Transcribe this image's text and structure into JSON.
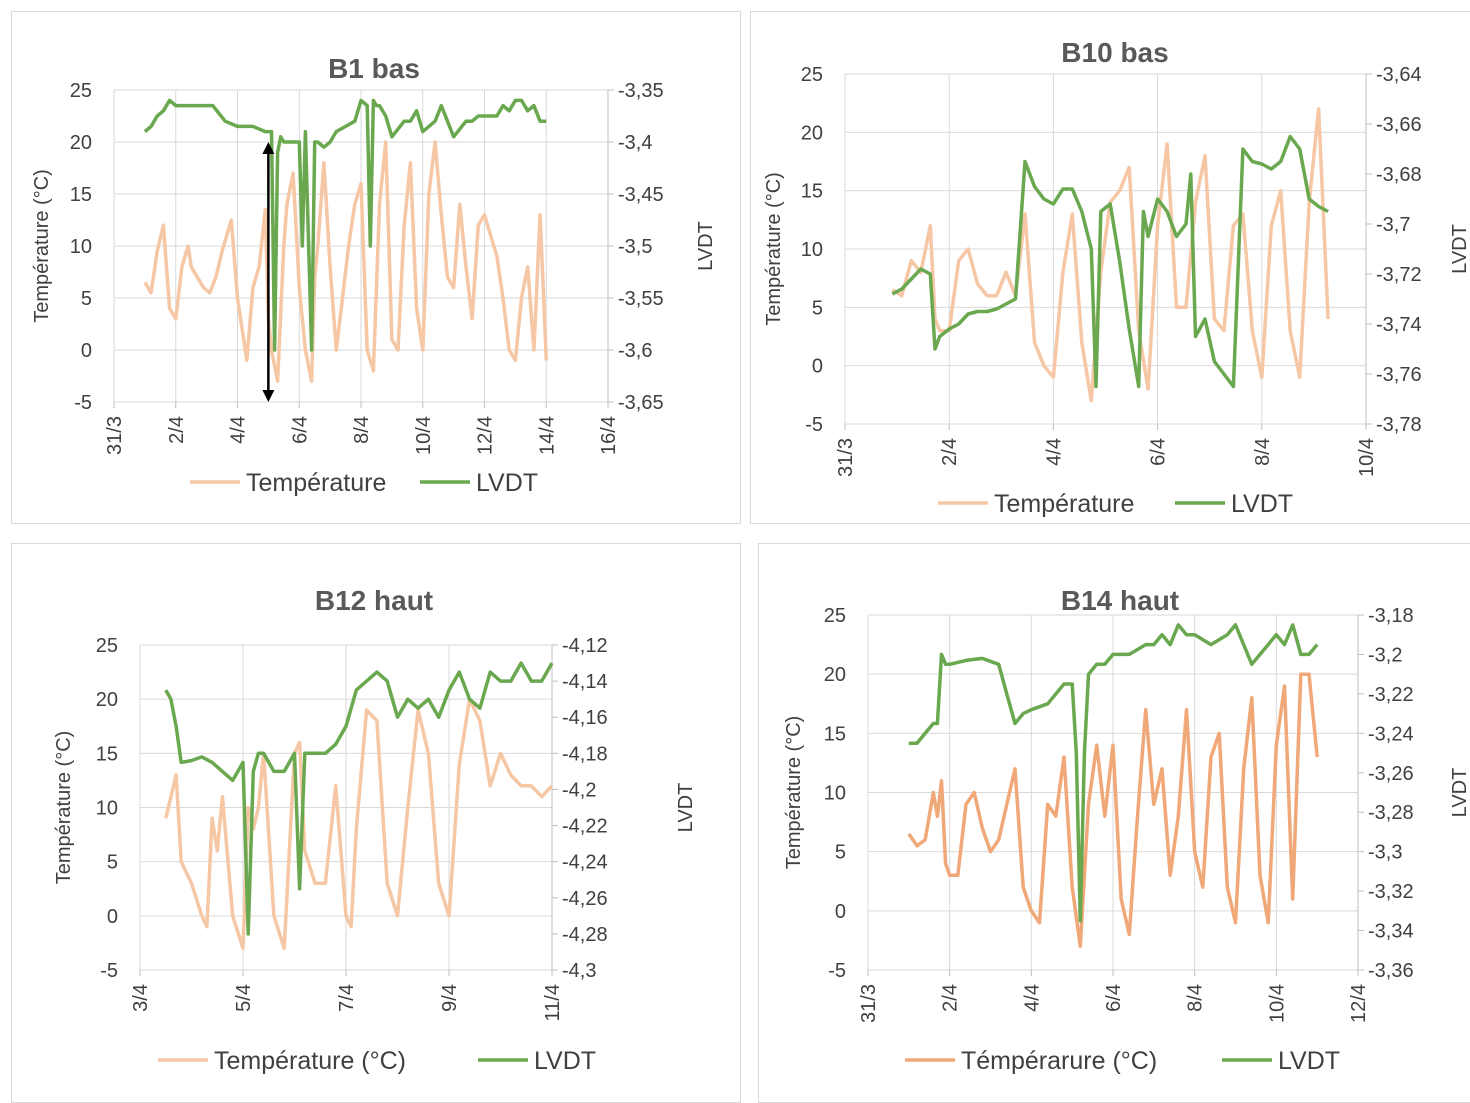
{
  "colors": {
    "temperature": "#f6c7a5",
    "temperature_dark": "#f0a878",
    "lvdt": "#6aa84f",
    "grid": "#d9d9d9",
    "text": "#404040",
    "title": "#595959"
  },
  "chart_data": [
    {
      "type": "line",
      "title": "B1 bas",
      "ylabel": "Température (°C)",
      "y2label": "LVDT",
      "xlabel": "",
      "xlim": [
        0,
        16
      ],
      "x_ticks": [
        "31/3",
        "2/4",
        "4/4",
        "6/4",
        "8/4",
        "10/4",
        "12/4",
        "14/4",
        "16/4"
      ],
      "ylim": [
        -5,
        25
      ],
      "y_ticks": [
        "-5",
        "0",
        "5",
        "10",
        "15",
        "20",
        "25"
      ],
      "y2lim": [
        -3.65,
        -3.35
      ],
      "y2_ticks": [
        "-3,65",
        "-3,6",
        "-3,55",
        "-3,5",
        "-3,45",
        "-3,4",
        "-3,35"
      ],
      "annotation": {
        "type": "double-arrow",
        "x": 5.0,
        "y2_from": -3.4,
        "y2_to": -3.65
      },
      "legend": [
        "Température",
        "LVDT"
      ],
      "legend_position": "bottom",
      "series": [
        {
          "name": "Température",
          "axis": "left",
          "color": "#f6c7a5",
          "x": [
            1.0,
            1.2,
            1.4,
            1.6,
            1.8,
            2.0,
            2.2,
            2.4,
            2.5,
            2.7,
            2.9,
            3.1,
            3.3,
            3.5,
            3.8,
            4.0,
            4.1,
            4.3,
            4.5,
            4.7,
            4.9,
            5.0,
            5.1,
            5.3,
            5.5,
            5.6,
            5.8,
            6.0,
            6.2,
            6.4,
            6.5,
            6.6,
            6.8,
            7.0,
            7.2,
            7.4,
            7.6,
            7.8,
            8.0,
            8.2,
            8.4,
            8.6,
            8.8,
            9.0,
            9.2,
            9.4,
            9.6,
            9.8,
            10.0,
            10.2,
            10.4,
            10.6,
            10.8,
            11.0,
            11.2,
            11.4,
            11.6,
            11.8,
            12.0,
            12.2,
            12.4,
            12.6,
            12.8,
            13.0,
            13.2,
            13.4,
            13.6,
            13.8,
            14.0
          ],
          "values": [
            6.5,
            5.5,
            9.5,
            12,
            4,
            3,
            8,
            10,
            8,
            7,
            6,
            5.5,
            7,
            9.5,
            12.5,
            5,
            3,
            -1,
            6,
            8,
            13.5,
            3,
            0,
            -3,
            10,
            14,
            17,
            6,
            0,
            -3,
            7,
            10,
            18,
            8,
            0,
            5,
            10,
            14,
            16,
            0,
            -2,
            14,
            20,
            1,
            0,
            12,
            18,
            4,
            0,
            15,
            20,
            13,
            7,
            6,
            14,
            8,
            3,
            12,
            13,
            11,
            9,
            5,
            0,
            -1,
            5,
            8,
            0,
            13,
            -1
          ]
        },
        {
          "name": "LVDT",
          "axis": "right",
          "color": "#6aa84f",
          "x": [
            1.0,
            1.2,
            1.4,
            1.6,
            1.8,
            2.0,
            2.4,
            2.8,
            3.0,
            3.2,
            3.6,
            4.0,
            4.5,
            4.9,
            5.1,
            5.2,
            5.3,
            5.4,
            5.5,
            5.6,
            5.8,
            6.0,
            6.1,
            6.2,
            6.4,
            6.5,
            6.6,
            6.8,
            7.0,
            7.2,
            7.5,
            7.8,
            8.0,
            8.2,
            8.3,
            8.4,
            8.5,
            8.6,
            8.8,
            9.0,
            9.4,
            9.6,
            9.8,
            10.0,
            10.4,
            10.6,
            10.8,
            11.0,
            11.4,
            11.6,
            11.8,
            12.0,
            12.4,
            12.6,
            12.8,
            13.0,
            13.2,
            13.4,
            13.6,
            13.8,
            14.0
          ],
          "values": [
            -3.39,
            -3.385,
            -3.375,
            -3.37,
            -3.36,
            -3.365,
            -3.365,
            -3.365,
            -3.365,
            -3.365,
            -3.38,
            -3.385,
            -3.385,
            -3.39,
            -3.39,
            -3.6,
            -3.41,
            -3.395,
            -3.4,
            -3.4,
            -3.4,
            -3.4,
            -3.5,
            -3.39,
            -3.6,
            -3.4,
            -3.4,
            -3.405,
            -3.4,
            -3.39,
            -3.385,
            -3.38,
            -3.36,
            -3.365,
            -3.5,
            -3.36,
            -3.365,
            -3.365,
            -3.375,
            -3.395,
            -3.38,
            -3.38,
            -3.37,
            -3.39,
            -3.38,
            -3.365,
            -3.38,
            -3.395,
            -3.38,
            -3.38,
            -3.375,
            -3.375,
            -3.375,
            -3.365,
            -3.37,
            -3.36,
            -3.36,
            -3.37,
            -3.365,
            -3.38,
            -3.38
          ]
        }
      ]
    },
    {
      "type": "line",
      "title": "B10 bas",
      "ylabel": "Température (°C)",
      "y2label": "LVDT",
      "xlabel": "",
      "xlim": [
        0,
        11
      ],
      "x_ticks": [
        "31/3",
        "2/4",
        "4/4",
        "6/4",
        "8/4",
        "10/4"
      ],
      "ylim": [
        -5,
        25
      ],
      "y_ticks": [
        "-5",
        "0",
        "5",
        "10",
        "15",
        "20",
        "25"
      ],
      "y2lim": [
        -3.78,
        -3.64
      ],
      "y2_ticks": [
        "-3,78",
        "-3,76",
        "-3,74",
        "-3,72",
        "-3,7",
        "-3,68",
        "-3,66",
        "-3,64"
      ],
      "legend": [
        "Température",
        "LVDT"
      ],
      "legend_position": "bottom",
      "series": [
        {
          "name": "Température",
          "axis": "left",
          "color": "#f6c7a5",
          "x": [
            1.0,
            1.2,
            1.4,
            1.6,
            1.8,
            1.9,
            2.0,
            2.2,
            2.4,
            2.6,
            2.8,
            3.0,
            3.2,
            3.4,
            3.6,
            3.8,
            4.0,
            4.2,
            4.4,
            4.6,
            4.8,
            5.0,
            5.2,
            5.4,
            5.6,
            5.8,
            6.0,
            6.2,
            6.4,
            6.6,
            6.8,
            7.0,
            7.2,
            7.4,
            7.6,
            7.8,
            8.0,
            8.2,
            8.4,
            8.6,
            8.8,
            9.0,
            9.2,
            9.4,
            9.6,
            9.8,
            10.0,
            10.2
          ],
          "values": [
            6.5,
            6,
            9,
            8,
            12,
            4,
            3,
            3,
            9,
            10,
            7,
            6,
            6,
            8,
            6,
            13,
            2,
            0,
            -1,
            8,
            13,
            2,
            -3,
            8,
            14,
            15,
            17,
            3,
            -2,
            12,
            19,
            5,
            5,
            14,
            18,
            4,
            3,
            12,
            13,
            3,
            -1,
            12,
            15,
            3,
            -1,
            14,
            22,
            4
          ]
        },
        {
          "name": "LVDT",
          "axis": "right",
          "color": "#6aa84f",
          "x": [
            1.0,
            1.2,
            1.4,
            1.6,
            1.8,
            1.9,
            2.0,
            2.2,
            2.4,
            2.6,
            2.8,
            3.0,
            3.2,
            3.4,
            3.6,
            3.8,
            4.0,
            4.2,
            4.4,
            4.6,
            4.8,
            5.0,
            5.2,
            5.3,
            5.4,
            5.6,
            5.8,
            6.0,
            6.2,
            6.3,
            6.4,
            6.6,
            6.8,
            7.0,
            7.2,
            7.3,
            7.4,
            7.6,
            7.8,
            8.0,
            8.2,
            8.4,
            8.6,
            8.8,
            9.0,
            9.2,
            9.4,
            9.6,
            9.8,
            10.0,
            10.2
          ],
          "values": [
            -3.728,
            -3.726,
            -3.722,
            -3.718,
            -3.72,
            -3.75,
            -3.745,
            -3.742,
            -3.74,
            -3.736,
            -3.735,
            -3.735,
            -3.734,
            -3.732,
            -3.73,
            -3.675,
            -3.685,
            -3.69,
            -3.692,
            -3.686,
            -3.686,
            -3.695,
            -3.71,
            -3.765,
            -3.695,
            -3.692,
            -3.715,
            -3.742,
            -3.765,
            -3.695,
            -3.705,
            -3.69,
            -3.695,
            -3.705,
            -3.7,
            -3.68,
            -3.745,
            -3.738,
            -3.755,
            -3.76,
            -3.765,
            -3.67,
            -3.675,
            -3.676,
            -3.678,
            -3.675,
            -3.665,
            -3.67,
            -3.69,
            -3.693,
            -3.695
          ]
        }
      ]
    },
    {
      "type": "line",
      "title": "B12 haut",
      "ylabel": "Température (°C)",
      "y2label": "LVDT",
      "xlabel": "",
      "xlim": [
        0,
        8
      ],
      "x_ticks": [
        "3/4",
        "5/4",
        "7/4",
        "9/4",
        "11/4"
      ],
      "ylim": [
        -5,
        25
      ],
      "y_ticks": [
        "-5",
        "0",
        "5",
        "10",
        "15",
        "20",
        "25"
      ],
      "y2lim": [
        -4.3,
        -4.12
      ],
      "y2_ticks": [
        "-4,3",
        "-4,28",
        "-4,26",
        "-4,24",
        "-4,22",
        "-4,2",
        "-4,18",
        "-4,16",
        "-4,14",
        "-4,12"
      ],
      "legend": [
        "Température (°C)",
        "LVDT"
      ],
      "legend_position": "bottom",
      "series": [
        {
          "name": "Température (°C)",
          "axis": "left",
          "color": "#f6c7a5",
          "x": [
            0.5,
            0.6,
            0.7,
            0.8,
            1.0,
            1.2,
            1.3,
            1.4,
            1.5,
            1.6,
            1.8,
            2.0,
            2.1,
            2.2,
            2.3,
            2.4,
            2.6,
            2.8,
            3.0,
            3.1,
            3.2,
            3.4,
            3.6,
            3.8,
            4.0,
            4.1,
            4.2,
            4.4,
            4.6,
            4.8,
            5.0,
            5.2,
            5.4,
            5.6,
            5.8,
            6.0,
            6.2,
            6.4,
            6.6,
            6.8,
            7.0,
            7.2,
            7.4,
            7.6,
            7.8,
            8.0
          ],
          "values": [
            9,
            11,
            13,
            5,
            3,
            0,
            -1,
            9,
            6,
            11,
            0,
            -3,
            10,
            8,
            10,
            15,
            0,
            -3,
            15,
            16,
            6,
            3,
            3,
            12,
            0,
            -1,
            8,
            19,
            18,
            3,
            0,
            10,
            19,
            15,
            3,
            0,
            14,
            20,
            18,
            12,
            15,
            13,
            12,
            12,
            11,
            12
          ]
        },
        {
          "name": "LVDT",
          "axis": "right",
          "color": "#6aa84f",
          "x": [
            0.5,
            0.6,
            0.7,
            0.8,
            1.0,
            1.2,
            1.4,
            1.6,
            1.8,
            2.0,
            2.1,
            2.2,
            2.3,
            2.4,
            2.6,
            2.8,
            3.0,
            3.1,
            3.2,
            3.4,
            3.6,
            3.8,
            4.0,
            4.2,
            4.4,
            4.6,
            4.8,
            5.0,
            5.2,
            5.4,
            5.6,
            5.8,
            6.0,
            6.2,
            6.4,
            6.6,
            6.8,
            7.0,
            7.2,
            7.4,
            7.6,
            7.8,
            8.0
          ],
          "values": [
            -4.145,
            -4.15,
            -4.165,
            -4.185,
            -4.184,
            -4.182,
            -4.185,
            -4.19,
            -4.195,
            -4.185,
            -4.28,
            -4.19,
            -4.18,
            -4.18,
            -4.19,
            -4.19,
            -4.18,
            -4.255,
            -4.18,
            -4.18,
            -4.18,
            -4.175,
            -4.165,
            -4.145,
            -4.14,
            -4.135,
            -4.14,
            -4.16,
            -4.15,
            -4.155,
            -4.15,
            -4.16,
            -4.145,
            -4.135,
            -4.15,
            -4.155,
            -4.135,
            -4.14,
            -4.14,
            -4.13,
            -4.14,
            -4.14,
            -4.13
          ]
        }
      ]
    },
    {
      "type": "line",
      "title": "B14 haut",
      "ylabel": "Température (°C)",
      "y2label": "LVDT",
      "xlabel": "",
      "xlim": [
        0,
        12
      ],
      "x_ticks": [
        "31/3",
        "2/4",
        "4/4",
        "6/4",
        "8/4",
        "10/4",
        "12/4"
      ],
      "ylim": [
        -5,
        25
      ],
      "y_ticks": [
        "-5",
        "0",
        "5",
        "10",
        "15",
        "20",
        "25"
      ],
      "y2lim": [
        -3.36,
        -3.18
      ],
      "y2_ticks": [
        "-3,36",
        "-3,34",
        "-3,32",
        "-3,3",
        "-3,28",
        "-3,26",
        "-3,24",
        "-3,22",
        "-3,2",
        "-3,18"
      ],
      "legend": [
        "Témpérarure (°C)",
        "LVDT"
      ],
      "legend_position": "bottom",
      "series": [
        {
          "name": "Témpérarure (°C)",
          "axis": "left",
          "color": "#f0a878",
          "x": [
            1.0,
            1.2,
            1.4,
            1.6,
            1.7,
            1.8,
            1.9,
            2.0,
            2.2,
            2.4,
            2.6,
            2.8,
            3.0,
            3.2,
            3.4,
            3.6,
            3.8,
            4.0,
            4.2,
            4.4,
            4.6,
            4.8,
            5.0,
            5.2,
            5.4,
            5.6,
            5.8,
            6.0,
            6.2,
            6.4,
            6.6,
            6.8,
            7.0,
            7.2,
            7.4,
            7.6,
            7.8,
            8.0,
            8.2,
            8.4,
            8.6,
            8.8,
            9.0,
            9.2,
            9.4,
            9.6,
            9.8,
            10.0,
            10.2,
            10.4,
            10.6,
            10.8,
            11.0
          ],
          "values": [
            6.5,
            5.5,
            6,
            10,
            8,
            11,
            4,
            3,
            3,
            9,
            10,
            7,
            5,
            6,
            9,
            12,
            2,
            0,
            -1,
            9,
            8,
            13,
            2,
            -3,
            9,
            14,
            8,
            14,
            1,
            -2,
            8,
            17,
            9,
            12,
            3,
            8,
            17,
            5,
            2,
            13,
            15,
            2,
            -1,
            12,
            18,
            3,
            -1,
            14,
            19,
            1,
            20,
            20,
            13
          ]
        },
        {
          "name": "LVDT",
          "axis": "right",
          "color": "#6aa84f",
          "x": [
            1.0,
            1.2,
            1.4,
            1.6,
            1.7,
            1.8,
            1.9,
            2.0,
            2.4,
            2.8,
            3.2,
            3.4,
            3.6,
            3.8,
            4.0,
            4.4,
            4.8,
            5.0,
            5.1,
            5.2,
            5.3,
            5.4,
            5.6,
            5.8,
            6.0,
            6.4,
            6.8,
            7.0,
            7.2,
            7.4,
            7.6,
            7.8,
            8.0,
            8.4,
            8.8,
            9.0,
            9.4,
            9.8,
            10.0,
            10.2,
            10.4,
            10.6,
            10.8,
            11.0
          ],
          "values": [
            -3.245,
            -3.245,
            -3.24,
            -3.235,
            -3.235,
            -3.2,
            -3.205,
            -3.205,
            -3.203,
            -3.202,
            -3.205,
            -3.22,
            -3.235,
            -3.23,
            -3.228,
            -3.225,
            -3.215,
            -3.215,
            -3.25,
            -3.335,
            -3.25,
            -3.21,
            -3.205,
            -3.205,
            -3.2,
            -3.2,
            -3.195,
            -3.195,
            -3.19,
            -3.195,
            -3.185,
            -3.19,
            -3.19,
            -3.195,
            -3.19,
            -3.185,
            -3.205,
            -3.195,
            -3.19,
            -3.195,
            -3.185,
            -3.2,
            -3.2,
            -3.195
          ]
        }
      ]
    }
  ]
}
